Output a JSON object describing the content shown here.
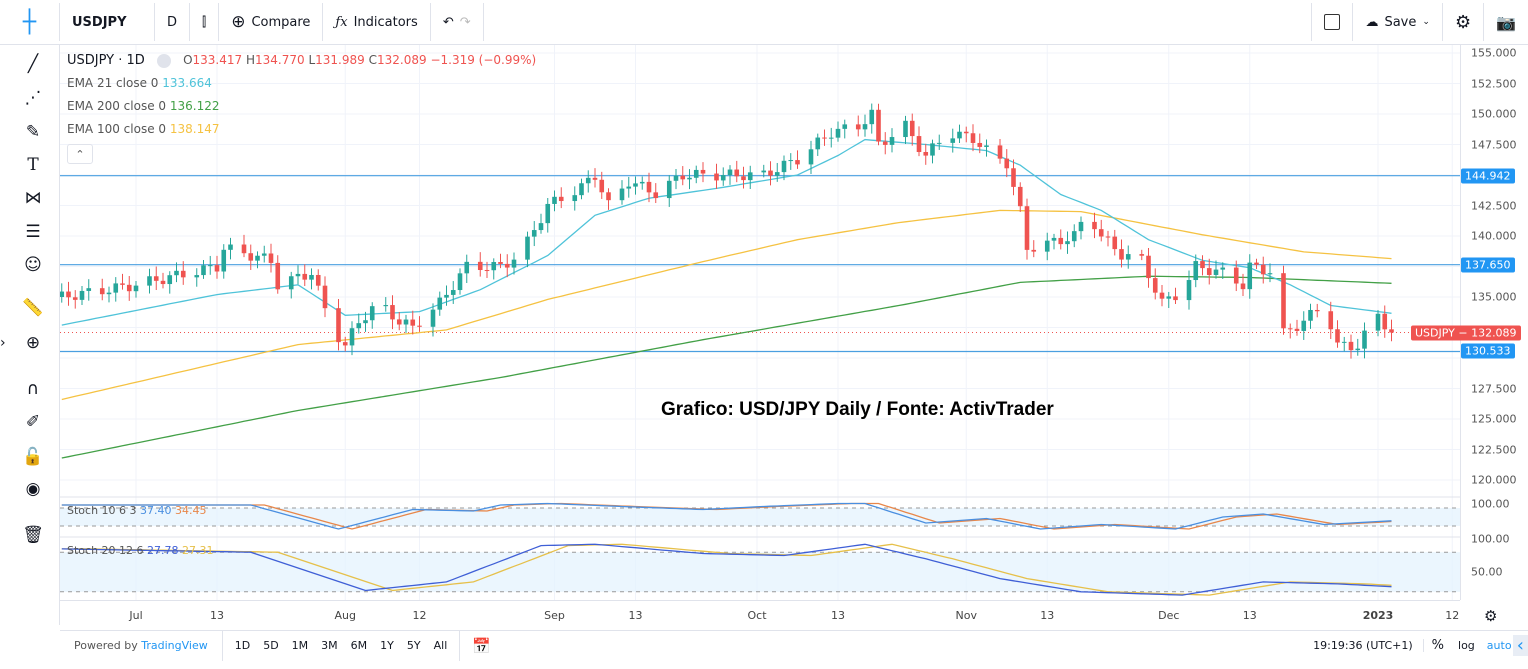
{
  "toolbar": {
    "symbol": "USDJPY",
    "interval": "D",
    "compare": "Compare",
    "indicators": "Indicators",
    "save": "Save"
  },
  "legend": {
    "title": "USDJPY · 1D",
    "o_label": "O",
    "o": "133.417",
    "h_label": "H",
    "h": "134.770",
    "l_label": "L",
    "l": "131.989",
    "c_label": "C",
    "c": "132.089",
    "change": "−1.319 (−0.99%)",
    "ema": [
      {
        "label": "EMA 21 close 0",
        "value": "133.664",
        "color": "#4fc3d9"
      },
      {
        "label": "EMA 200 close 0",
        "value": "136.122",
        "color": "#43a047"
      },
      {
        "label": "EMA 100 close 0",
        "value": "138.147",
        "color": "#f5c242"
      }
    ]
  },
  "stoch": [
    {
      "label": "Stoch 10 6 3",
      "k": "37.40",
      "d": "34.45"
    },
    {
      "label": "Stoch 20 12 6",
      "k": "27.78",
      "d": "27.31"
    }
  ],
  "annotation": "Grafico: USD/JPY Daily / Fonte: ActivTrader",
  "price_axis": [
    "155.000",
    "152.500",
    "150.000",
    "147.500",
    "142.500",
    "140.000",
    "135.000",
    "127.500",
    "125.000",
    "122.500",
    "120.000"
  ],
  "stoch_axis": [
    "100.00",
    "100.00",
    "50.00"
  ],
  "levels": [
    {
      "value": "144.942",
      "price": 144.942
    },
    {
      "value": "137.650",
      "price": 137.65
    },
    {
      "value": "130.533",
      "price": 130.533
    }
  ],
  "last_price": {
    "label": "USDJPY",
    "value": "132.089",
    "price": 132.089
  },
  "time_axis": [
    "Jul",
    "13",
    "Aug",
    "12",
    "Sep",
    "13",
    "Oct",
    "13",
    "Nov",
    "13",
    "Dec",
    "13",
    "2023",
    "12"
  ],
  "bottom": {
    "powered": "Powered by ",
    "brand": "TradingView",
    "ranges": [
      "1D",
      "5D",
      "1M",
      "3M",
      "6M",
      "1Y",
      "5Y",
      "All"
    ],
    "clock": "19:19:36 (UTC+1)",
    "pct": "%",
    "log": "log",
    "auto": "auto"
  },
  "colors": {
    "up": "#26a69a",
    "down": "#ef5350",
    "level": "#4a9fe0",
    "ema21": "#4fc3d9",
    "ema100": "#f5c242",
    "ema200": "#43a047",
    "stochK": "#4a8fe0",
    "stochD": "#e8874a",
    "stoch2K": "#3f5fd6",
    "stoch2D": "#e6c04a"
  },
  "chart_data": {
    "type": "candlestick",
    "symbol": "USDJPY",
    "interval": "1D",
    "ylim": [
      119,
      156
    ],
    "close": [
      [
        "2022-06-20",
        135
      ],
      [
        "2022-07-01",
        136
      ],
      [
        "2022-07-13",
        137.5
      ],
      [
        "2022-07-14",
        139
      ],
      [
        "2022-07-21",
        138
      ],
      [
        "2022-07-22",
        136
      ],
      [
        "2022-07-27",
        137
      ],
      [
        "2022-07-30",
        132.5
      ],
      [
        "2022-08-01",
        131
      ],
      [
        "2022-08-03",
        133
      ],
      [
        "2022-08-06",
        134.5
      ],
      [
        "2022-08-09",
        133
      ],
      [
        "2022-08-11",
        132.5
      ],
      [
        "2022-08-15",
        134.5
      ],
      [
        "2022-08-19",
        137.5
      ],
      [
        "2022-08-24",
        137.5
      ],
      [
        "2022-08-27",
        138.5
      ],
      [
        "2022-08-31",
        142.5
      ],
      [
        "2022-09-05",
        144
      ],
      [
        "2022-09-07",
        145
      ],
      [
        "2022-09-09",
        142.5
      ],
      [
        "2022-09-12",
        144.5
      ],
      [
        "2022-09-16",
        143.5
      ],
      [
        "2022-09-20",
        145
      ],
      [
        "2022-09-25",
        145
      ],
      [
        "2022-10-02",
        145
      ],
      [
        "2022-10-07",
        146.3
      ],
      [
        "2022-10-12",
        148.5
      ],
      [
        "2022-10-16",
        149
      ],
      [
        "2022-10-18",
        150
      ],
      [
        "2022-10-19",
        147.5
      ],
      [
        "2022-10-23",
        149
      ],
      [
        "2022-10-26",
        146.5
      ],
      [
        "2022-10-29",
        148.5
      ],
      [
        "2022-11-02",
        148
      ],
      [
        "2022-11-05",
        146.5
      ],
      [
        "2022-11-07",
        146
      ],
      [
        "2022-11-09",
        142
      ],
      [
        "2022-11-10",
        139
      ],
      [
        "2022-11-14",
        139.5
      ],
      [
        "2022-11-17",
        140
      ],
      [
        "2022-11-19",
        142
      ],
      [
        "2022-11-21",
        140
      ],
      [
        "2022-11-24",
        138.5
      ],
      [
        "2022-11-27",
        138
      ],
      [
        "2022-11-30",
        134.5
      ],
      [
        "2022-12-03",
        135.5
      ],
      [
        "2022-12-05",
        137.5
      ],
      [
        "2022-12-09",
        137
      ],
      [
        "2022-12-12",
        136
      ],
      [
        "2022-12-13",
        137.5
      ],
      [
        "2022-12-17",
        137
      ],
      [
        "2022-12-18",
        132
      ],
      [
        "2022-12-21",
        133
      ],
      [
        "2022-12-24",
        134.5
      ],
      [
        "2022-12-26",
        131
      ],
      [
        "2022-12-29",
        131
      ],
      [
        "2023-01-01",
        133.5
      ],
      [
        "2023-01-03",
        132.089
      ]
    ],
    "ema21": [
      [
        "2022-06-20",
        132.7
      ],
      [
        "2022-07-13",
        135.2
      ],
      [
        "2022-07-25",
        136
      ],
      [
        "2022-08-01",
        133.5
      ],
      [
        "2022-08-12",
        133.8
      ],
      [
        "2022-08-21",
        135.6
      ],
      [
        "2022-08-31",
        138.4
      ],
      [
        "2022-09-07",
        141.7
      ],
      [
        "2022-09-15",
        143.1
      ],
      [
        "2022-09-25",
        143.9
      ],
      [
        "2022-10-07",
        145
      ],
      [
        "2022-10-13",
        146.6
      ],
      [
        "2022-10-17",
        147.9
      ],
      [
        "2022-10-26",
        147.5
      ],
      [
        "2022-11-04",
        147
      ],
      [
        "2022-11-09",
        145.8
      ],
      [
        "2022-11-15",
        143.4
      ],
      [
        "2022-11-21",
        142.1
      ],
      [
        "2022-11-28",
        139.7
      ],
      [
        "2022-12-06",
        138
      ],
      [
        "2022-12-13",
        137.4
      ],
      [
        "2022-12-19",
        136
      ],
      [
        "2022-12-25",
        134.3
      ],
      [
        "2023-01-03",
        133.664
      ]
    ],
    "ema100": [
      [
        "2022-06-20",
        126.6
      ],
      [
        "2022-07-25",
        131.1
      ],
      [
        "2022-08-16",
        132.3
      ],
      [
        "2022-08-31",
        134.8
      ],
      [
        "2022-09-23",
        137.9
      ],
      [
        "2022-10-07",
        139.7
      ],
      [
        "2022-10-22",
        141.1
      ],
      [
        "2022-11-06",
        142.1
      ],
      [
        "2022-11-18",
        142
      ],
      [
        "2022-12-06",
        140.1
      ],
      [
        "2022-12-21",
        138.7
      ],
      [
        "2023-01-03",
        138.147
      ]
    ],
    "ema200": [
      [
        "2022-06-20",
        121.8
      ],
      [
        "2022-07-25",
        125.7
      ],
      [
        "2022-08-24",
        128.4
      ],
      [
        "2022-09-23",
        131.5
      ],
      [
        "2022-10-22",
        134.3
      ],
      [
        "2022-11-09",
        136.2
      ],
      [
        "2022-11-28",
        136.7
      ],
      [
        "2022-12-13",
        136.6
      ],
      [
        "2023-01-03",
        136.122
      ]
    ],
    "stoch1": [
      [
        "2022-06-20",
        90
      ],
      [
        "2022-07-18",
        90
      ],
      [
        "2022-07-31",
        10
      ],
      [
        "2022-08-11",
        75
      ],
      [
        "2022-08-20",
        70
      ],
      [
        "2022-08-24",
        90
      ],
      [
        "2022-08-31",
        95
      ],
      [
        "2022-09-11",
        85
      ],
      [
        "2022-09-23",
        75
      ],
      [
        "2022-10-02",
        85
      ],
      [
        "2022-10-13",
        95
      ],
      [
        "2022-10-17",
        95
      ],
      [
        "2022-10-26",
        30
      ],
      [
        "2022-11-04",
        45
      ],
      [
        "2022-11-12",
        10
      ],
      [
        "2022-11-21",
        25
      ],
      [
        "2022-12-02",
        10
      ],
      [
        "2022-12-09",
        50
      ],
      [
        "2022-12-15",
        60
      ],
      [
        "2022-12-24",
        25
      ],
      [
        "2023-01-03",
        37.4
      ]
    ],
    "stoch2": [
      [
        "2022-06-20",
        85
      ],
      [
        "2022-07-18",
        80
      ],
      [
        "2022-08-04",
        22
      ],
      [
        "2022-08-16",
        35
      ],
      [
        "2022-08-30",
        90
      ],
      [
        "2022-09-07",
        92
      ],
      [
        "2022-09-23",
        78
      ],
      [
        "2022-10-05",
        75
      ],
      [
        "2022-10-17",
        92
      ],
      [
        "2022-10-26",
        70
      ],
      [
        "2022-11-06",
        40
      ],
      [
        "2022-11-18",
        20
      ],
      [
        "2022-12-03",
        15
      ],
      [
        "2022-12-15",
        35
      ],
      [
        "2022-12-26",
        32
      ],
      [
        "2023-01-03",
        27.78
      ]
    ]
  }
}
